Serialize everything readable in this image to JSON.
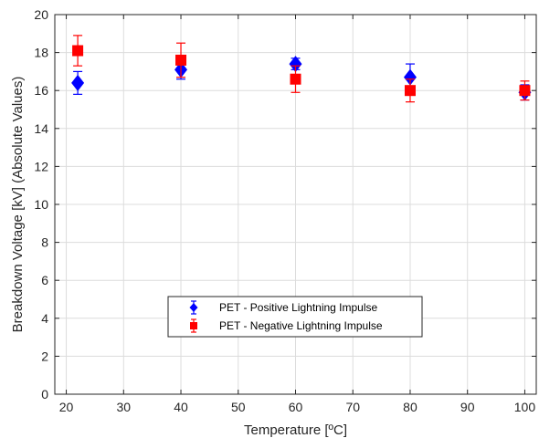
{
  "chart_data": {
    "type": "scatter",
    "xlabel": "Temperature [ºC]",
    "ylabel": "Breakdown Voltage [kV] (Absolute Values)",
    "xlim": [
      18,
      102
    ],
    "ylim": [
      0,
      20
    ],
    "xticks": [
      20,
      30,
      40,
      50,
      60,
      70,
      80,
      90,
      100
    ],
    "yticks": [
      0,
      2,
      4,
      6,
      8,
      10,
      12,
      14,
      16,
      18,
      20
    ],
    "grid": true,
    "legend_position": "lower-center",
    "series": [
      {
        "name": "PET - Positive Lightning Impulse",
        "marker": "diamond",
        "color": "#0000ff",
        "points": [
          {
            "x": 22,
            "y": 16.4,
            "err": 0.6
          },
          {
            "x": 40,
            "y": 17.1,
            "err": 0.5
          },
          {
            "x": 60,
            "y": 17.4,
            "err": 0.3
          },
          {
            "x": 80,
            "y": 16.7,
            "err": 0.7
          },
          {
            "x": 100,
            "y": 15.9,
            "err": 0.4
          }
        ]
      },
      {
        "name": "PET - Negative Lightning Impulse",
        "marker": "square",
        "color": "#ff0000",
        "points": [
          {
            "x": 22,
            "y": 18.1,
            "err": 0.8
          },
          {
            "x": 40,
            "y": 17.6,
            "err": 0.9
          },
          {
            "x": 60,
            "y": 16.6,
            "err": 0.7
          },
          {
            "x": 80,
            "y": 16.0,
            "err": 0.6
          },
          {
            "x": 100,
            "y": 16.0,
            "err": 0.5
          }
        ]
      }
    ]
  }
}
